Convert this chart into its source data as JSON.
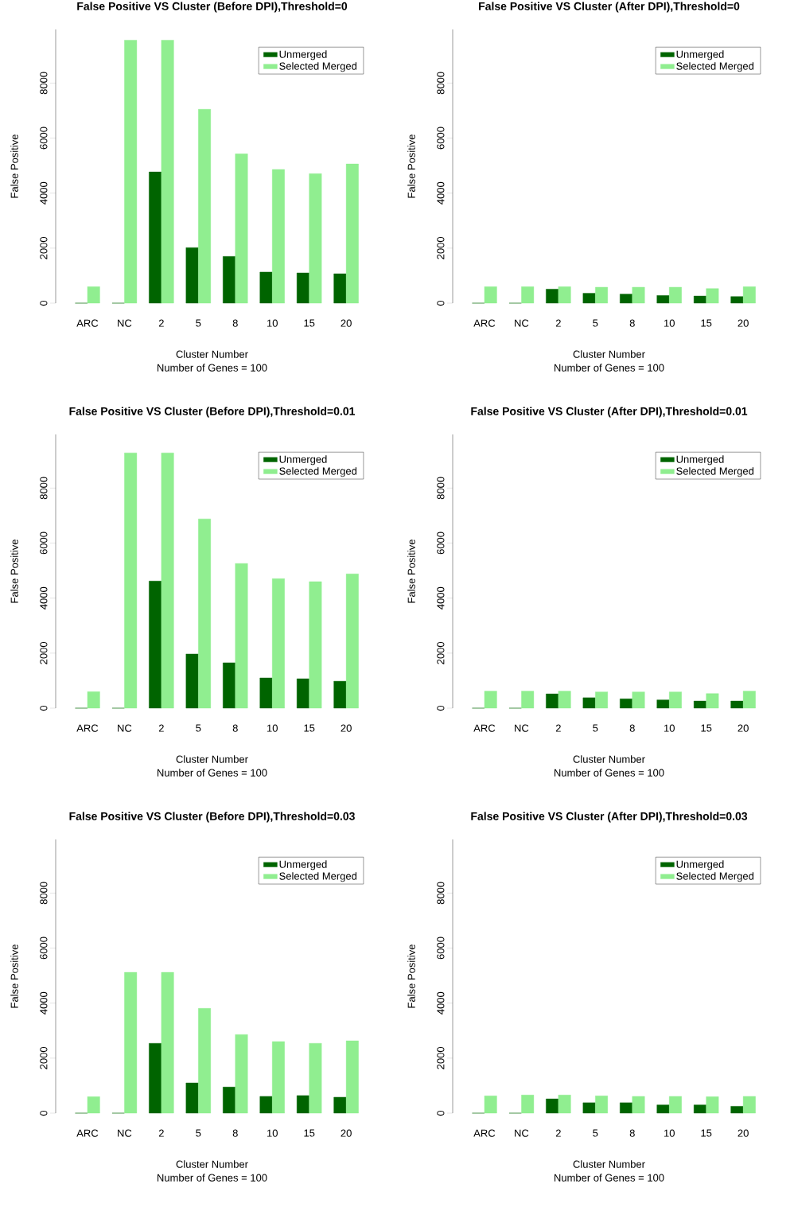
{
  "chart_data": [
    {
      "type": "bar",
      "title": "False Positive VS Cluster (Before DPI),Threshold=0",
      "subtitle": "Number of Genes =  100",
      "xlabel": "Cluster Number",
      "ylabel": "False Positive",
      "categories": [
        "ARC",
        "NC",
        "2",
        "5",
        "8",
        "10",
        "15",
        "20"
      ],
      "ylim": [
        0,
        9950
      ],
      "yticks": [
        0,
        2000,
        4000,
        6000,
        8000
      ],
      "legend": "top right",
      "series": [
        {
          "name": "Unmerged",
          "color": "#006400",
          "values": [
            0,
            0,
            4770,
            2020,
            1700,
            1130,
            1100,
            1070
          ]
        },
        {
          "name": "Selected Merged",
          "color": "#90ee90",
          "values": [
            600,
            9560,
            9560,
            7050,
            5430,
            4860,
            4710,
            5060
          ]
        }
      ]
    },
    {
      "type": "bar",
      "title": "False Positive VS Cluster (After DPI),Threshold=0",
      "subtitle": "Number of Genes =  100",
      "xlabel": "Cluster Number",
      "ylabel": "False Positive",
      "categories": [
        "ARC",
        "NC",
        "2",
        "5",
        "8",
        "10",
        "15",
        "20"
      ],
      "ylim": [
        0,
        9950
      ],
      "yticks": [
        0,
        2000,
        4000,
        6000,
        8000
      ],
      "legend": "top right",
      "series": [
        {
          "name": "Unmerged",
          "color": "#006400",
          "values": [
            0,
            0,
            510,
            360,
            330,
            280,
            260,
            240
          ]
        },
        {
          "name": "Selected Merged",
          "color": "#90ee90",
          "values": [
            600,
            600,
            600,
            580,
            580,
            580,
            530,
            600
          ]
        }
      ]
    },
    {
      "type": "bar",
      "title": "False Positive VS Cluster (Before DPI),Threshold=0.01",
      "subtitle": "Number of Genes =  100",
      "xlabel": "Cluster Number",
      "ylabel": "False Positive",
      "categories": [
        "ARC",
        "NC",
        "2",
        "5",
        "8",
        "10",
        "15",
        "20"
      ],
      "ylim": [
        0,
        9950
      ],
      "yticks": [
        0,
        2000,
        4000,
        6000,
        8000
      ],
      "legend": "top right",
      "series": [
        {
          "name": "Unmerged",
          "color": "#006400",
          "values": [
            0,
            0,
            4620,
            1970,
            1650,
            1100,
            1070,
            980
          ]
        },
        {
          "name": "Selected Merged",
          "color": "#90ee90",
          "values": [
            600,
            9280,
            9280,
            6880,
            5260,
            4710,
            4600,
            4880
          ]
        }
      ]
    },
    {
      "type": "bar",
      "title": "False Positive VS Cluster (After DPI),Threshold=0.01",
      "subtitle": "Number of Genes =  100",
      "xlabel": "Cluster Number",
      "ylabel": "False Positive",
      "categories": [
        "ARC",
        "NC",
        "2",
        "5",
        "8",
        "10",
        "15",
        "20"
      ],
      "ylim": [
        0,
        9950
      ],
      "yticks": [
        0,
        2000,
        4000,
        6000,
        8000
      ],
      "legend": "top right",
      "series": [
        {
          "name": "Unmerged",
          "color": "#006400",
          "values": [
            0,
            0,
            520,
            380,
            340,
            300,
            260,
            260
          ]
        },
        {
          "name": "Selected Merged",
          "color": "#90ee90",
          "values": [
            620,
            620,
            620,
            590,
            590,
            590,
            530,
            620
          ]
        }
      ]
    },
    {
      "type": "bar",
      "title": "False Positive VS Cluster (Before DPI),Threshold=0.03",
      "subtitle": "Number of Genes =  100",
      "xlabel": "Cluster Number",
      "ylabel": "False Positive",
      "categories": [
        "ARC",
        "NC",
        "2",
        "5",
        "8",
        "10",
        "15",
        "20"
      ],
      "ylim": [
        0,
        9950
      ],
      "yticks": [
        0,
        2000,
        4000,
        6000,
        8000
      ],
      "legend": "top right",
      "series": [
        {
          "name": "Unmerged",
          "color": "#006400",
          "values": [
            0,
            0,
            2540,
            1100,
            950,
            610,
            640,
            580
          ]
        },
        {
          "name": "Selected Merged",
          "color": "#90ee90",
          "values": [
            600,
            5120,
            5120,
            3810,
            2860,
            2600,
            2540,
            2630
          ]
        }
      ]
    },
    {
      "type": "bar",
      "title": "False Positive VS Cluster (After DPI),Threshold=0.03",
      "subtitle": "Number of Genes =  100",
      "xlabel": "Cluster Number",
      "ylabel": "False Positive",
      "categories": [
        "ARC",
        "NC",
        "2",
        "5",
        "8",
        "10",
        "15",
        "20"
      ],
      "ylim": [
        0,
        9950
      ],
      "yticks": [
        0,
        2000,
        4000,
        6000,
        8000
      ],
      "legend": "top right",
      "series": [
        {
          "name": "Unmerged",
          "color": "#006400",
          "values": [
            0,
            0,
            520,
            380,
            380,
            300,
            300,
            250
          ]
        },
        {
          "name": "Selected Merged",
          "color": "#90ee90",
          "values": [
            630,
            660,
            660,
            630,
            610,
            610,
            600,
            610
          ]
        }
      ]
    }
  ]
}
